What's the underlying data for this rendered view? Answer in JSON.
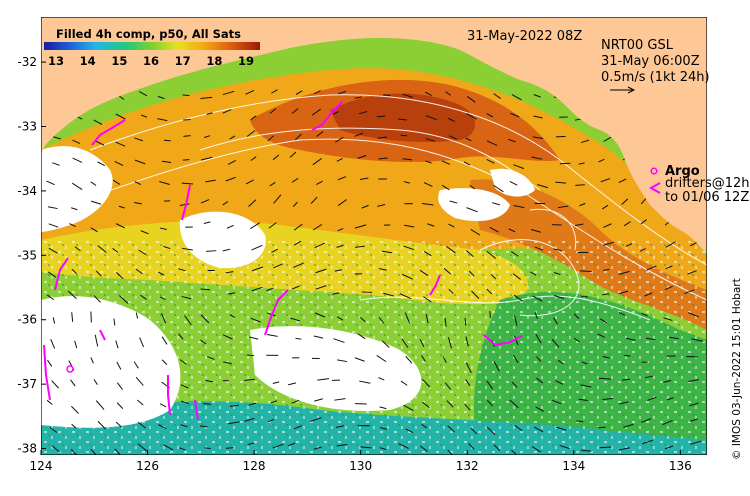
{
  "map": {
    "lon_ticks": [
      "124",
      "126",
      "128",
      "130",
      "132",
      "134",
      "136"
    ],
    "lat_ticks": [
      "-32",
      "-33",
      "-34",
      "-35",
      "-36",
      "-37",
      "-38"
    ],
    "lon_range": [
      124,
      136.5
    ],
    "lat_range": [
      -38.1,
      -31.3
    ]
  },
  "colorbar": {
    "title": "Filled 4h comp, p50, All Sats",
    "ticks": [
      "13",
      "14",
      "15",
      "16",
      "17",
      "18",
      "19"
    ]
  },
  "header": {
    "date": "31-May-2022 08Z"
  },
  "current_info": {
    "line1": "NRT00 GSL",
    "line2": "31-May 06:00Z",
    "line3": "0.5m/s (1kt 24h)"
  },
  "legend": {
    "argo_label": "Argo",
    "drifters_line1": "drifters@12h",
    "drifters_line2": "to 01/06 12Z"
  },
  "credit": "© IMOS 03-Jun-2022 15:01 Hobart",
  "colors": {
    "land": "#fdc896",
    "frame": "#000000",
    "argo": "#ff00ff",
    "contour": "#ffffff"
  }
}
